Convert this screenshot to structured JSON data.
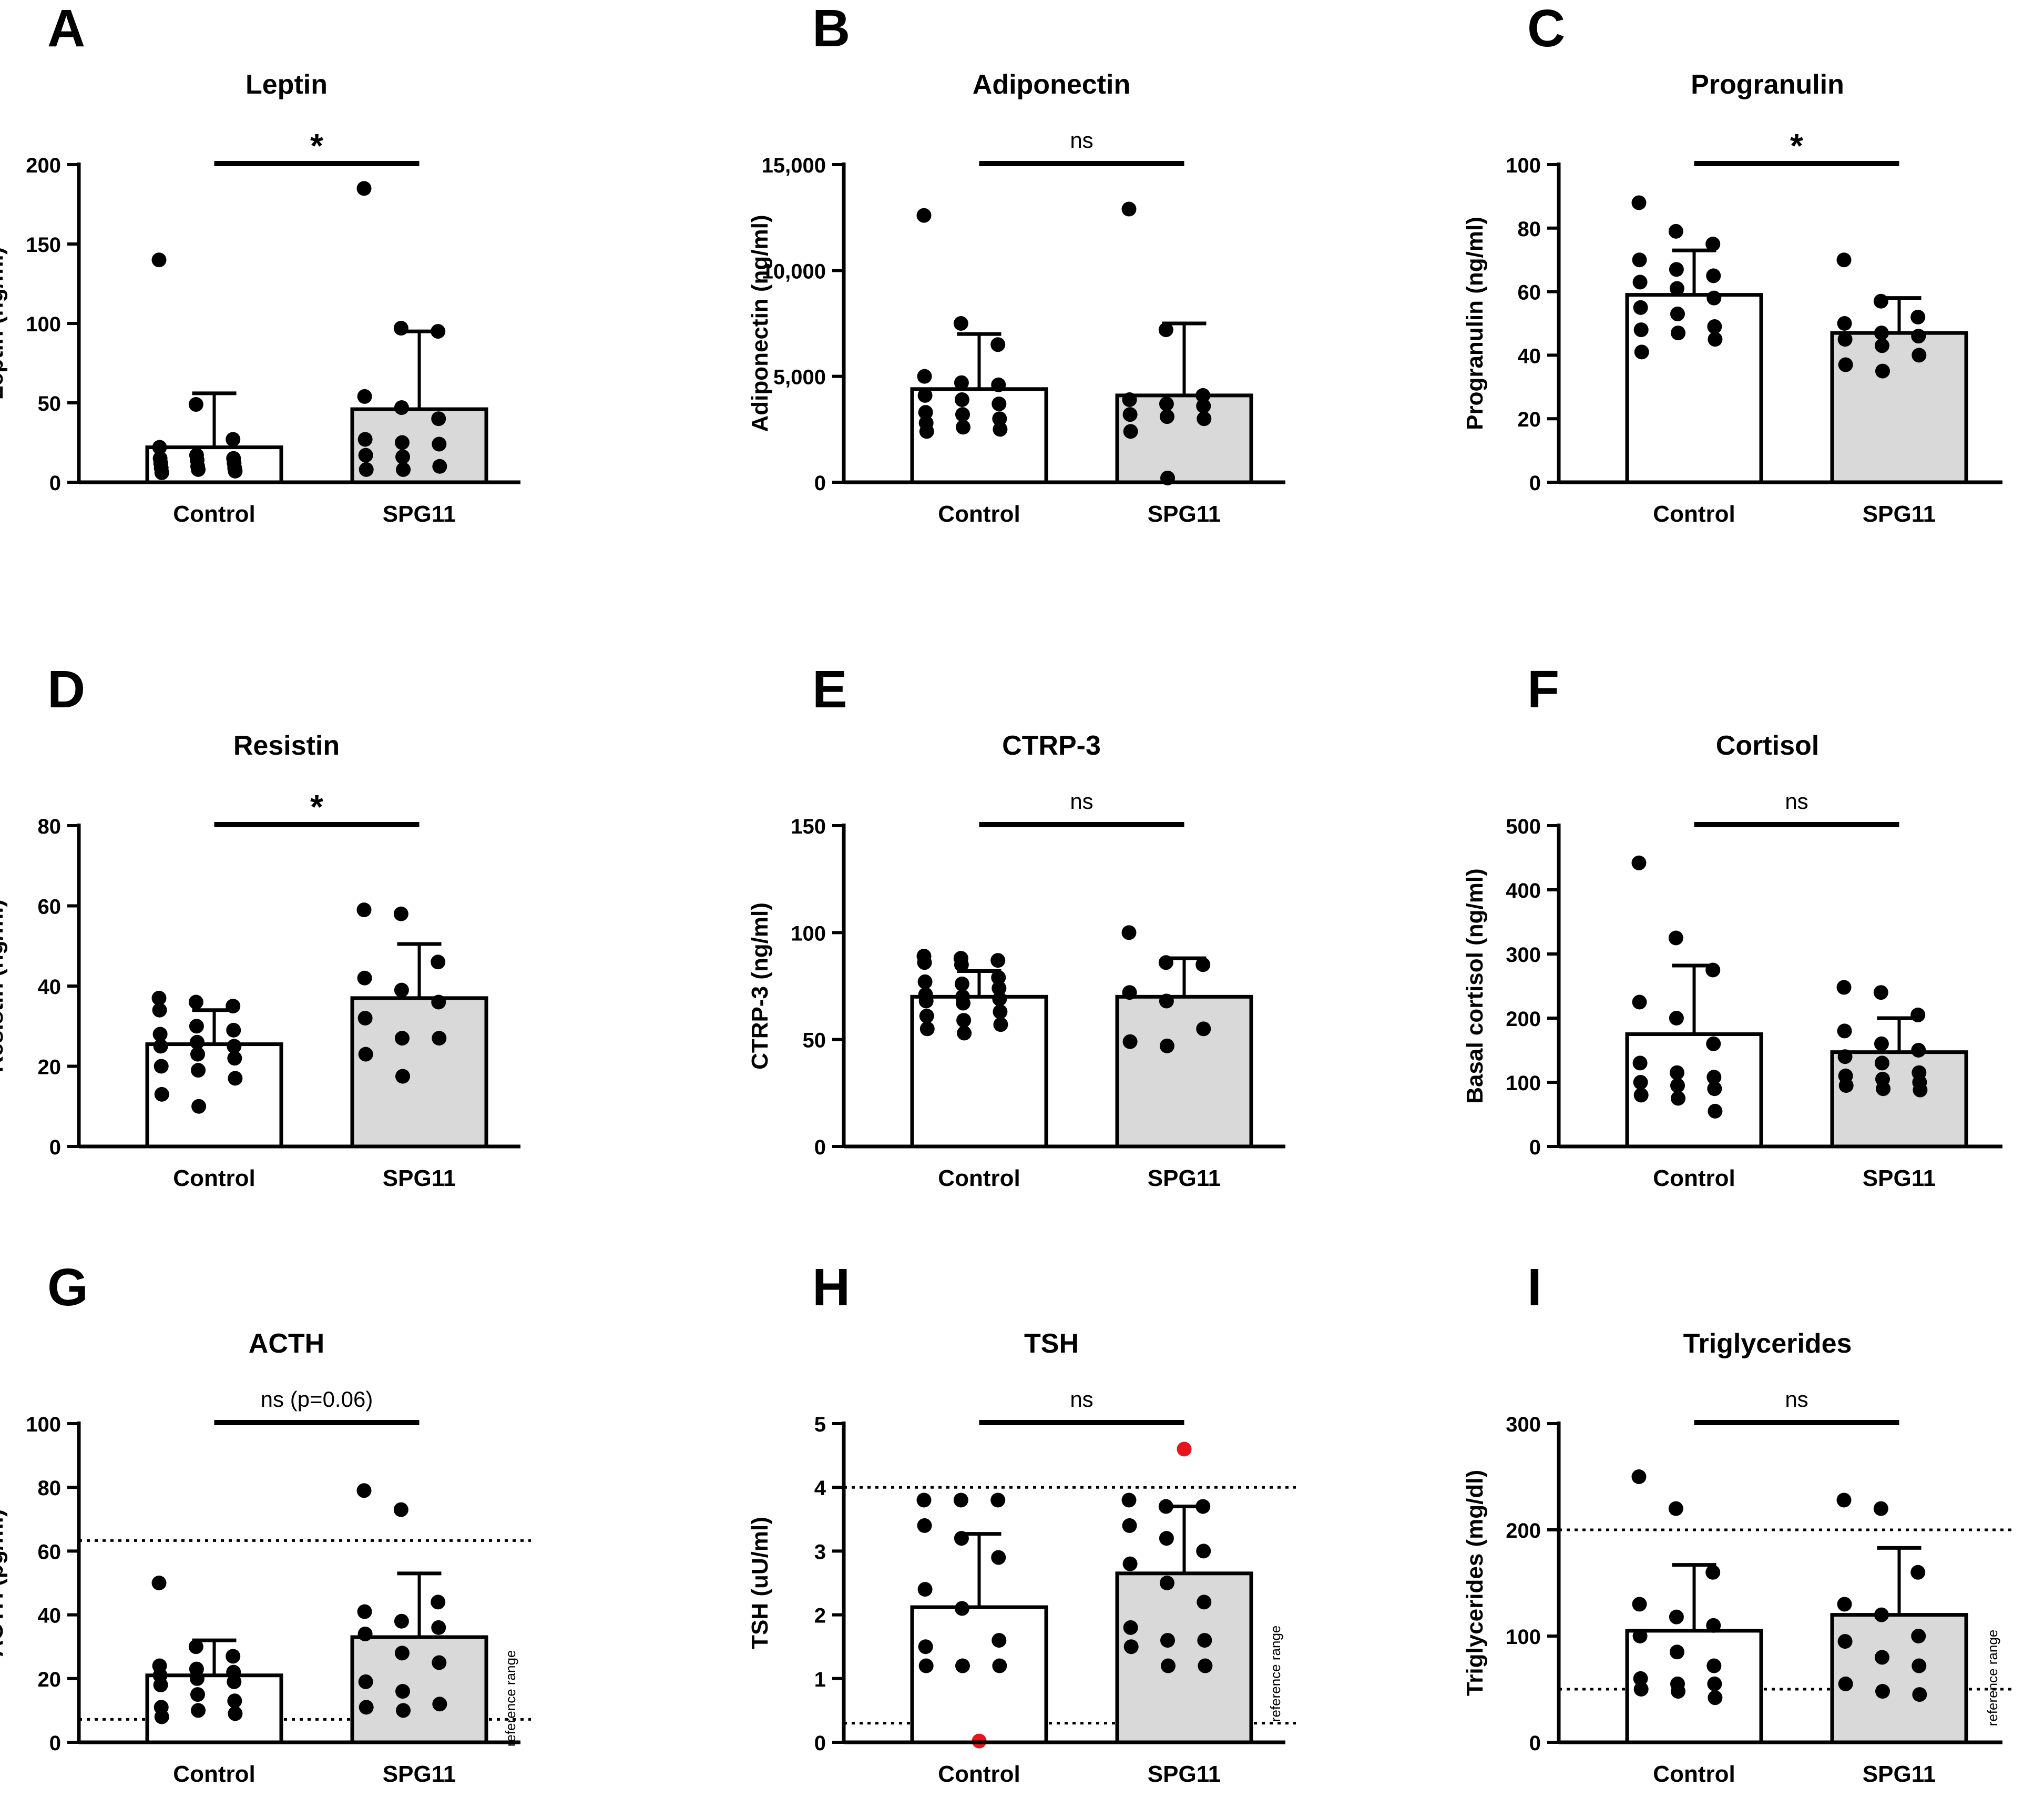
{
  "figure": {
    "reference_label": "reference range"
  },
  "chart_data": [
    {
      "panel": "A",
      "type": "bar",
      "title": "Leptin",
      "ylabel": "Leptin (ng/ml)",
      "categories": [
        "Control",
        "SPG11"
      ],
      "ylim": [
        0,
        200
      ],
      "yticks": [
        0,
        50,
        100,
        150,
        200
      ],
      "ytick_labels": [
        "0",
        "50",
        "100",
        "150",
        "200"
      ],
      "means": [
        22,
        46
      ],
      "error_upper": [
        56,
        95
      ],
      "bar_colors": [
        "#ffffff",
        "#d9d9d9"
      ],
      "points": [
        [
          140,
          49,
          27,
          22,
          17,
          15,
          15,
          14,
          12,
          12,
          10,
          9,
          9,
          8,
          7,
          6
        ],
        [
          185,
          97,
          95,
          54,
          47,
          40,
          27,
          25,
          24,
          17,
          16,
          10,
          8,
          8
        ]
      ],
      "significance": "*",
      "reference_range": null
    },
    {
      "panel": "B",
      "type": "bar",
      "title": "Adiponectin",
      "ylabel": "Adiponectin (ng/ml)",
      "categories": [
        "Control",
        "SPG11"
      ],
      "ylim": [
        0,
        15000
      ],
      "yticks": [
        0,
        5000,
        10000,
        15000
      ],
      "ytick_labels": [
        "0",
        "5,000",
        "10,000",
        "15,000"
      ],
      "means": [
        4400,
        4100
      ],
      "error_upper": [
        7000,
        7500
      ],
      "bar_colors": [
        "#ffffff",
        "#d9d9d9"
      ],
      "points": [
        [
          12600,
          7500,
          6500,
          5000,
          4700,
          4600,
          4100,
          3900,
          3700,
          3300,
          3200,
          3000,
          2800,
          2600,
          2500,
          2400
        ],
        [
          12900,
          7200,
          4100,
          3900,
          3700,
          3600,
          3200,
          3100,
          3000,
          2400,
          200
        ]
      ],
      "significance": "ns",
      "reference_range": null
    },
    {
      "panel": "C",
      "type": "bar",
      "title": "Progranulin",
      "ylabel": "Progranulin (ng/ml)",
      "categories": [
        "Control",
        "SPG11"
      ],
      "ylim": [
        0,
        100
      ],
      "yticks": [
        0,
        20,
        40,
        60,
        80,
        100
      ],
      "ytick_labels": [
        "0",
        "20",
        "40",
        "60",
        "80",
        "100"
      ],
      "means": [
        59,
        47
      ],
      "error_upper": [
        73,
        58
      ],
      "bar_colors": [
        "#ffffff",
        "#d9d9d9"
      ],
      "points": [
        [
          88,
          79,
          75,
          70,
          67,
          65,
          63,
          61,
          58,
          55,
          53,
          49,
          48,
          47,
          45,
          41
        ],
        [
          70,
          57,
          52,
          50,
          47,
          46,
          45,
          43,
          40,
          37,
          35
        ]
      ],
      "significance": "*",
      "reference_range": null
    },
    {
      "panel": "D",
      "type": "bar",
      "title": "Resistin",
      "ylabel": "Resistin (ng/ml)",
      "categories": [
        "Control",
        "SPG11"
      ],
      "ylim": [
        0,
        80
      ],
      "yticks": [
        0,
        20,
        40,
        60,
        80
      ],
      "ytick_labels": [
        "0",
        "20",
        "40",
        "60",
        "80"
      ],
      "means": [
        25.5,
        37
      ],
      "error_upper": [
        34,
        50.5
      ],
      "bar_colors": [
        "#ffffff",
        "#d9d9d9"
      ],
      "points": [
        [
          37,
          36,
          35,
          34,
          30,
          29,
          28,
          26,
          25,
          25,
          23,
          22,
          20,
          19,
          17,
          13,
          10
        ],
        [
          59,
          58,
          46,
          42,
          39,
          36,
          32,
          27,
          27,
          23,
          17.5
        ]
      ],
      "significance": "*",
      "reference_range": null
    },
    {
      "panel": "E",
      "type": "bar",
      "title": "CTRP-3",
      "ylabel": "CTRP-3 (ng/ml)",
      "categories": [
        "Control",
        "SPG11"
      ],
      "ylim": [
        0,
        150
      ],
      "yticks": [
        0,
        50,
        100,
        150
      ],
      "ytick_labels": [
        "0",
        "50",
        "100",
        "150"
      ],
      "means": [
        70,
        70
      ],
      "error_upper": [
        82,
        88
      ],
      "bar_colors": [
        "#ffffff",
        "#d9d9d9"
      ],
      "points": [
        [
          89,
          88,
          87,
          86,
          85,
          79,
          77,
          76,
          74,
          71,
          70,
          69,
          68,
          67,
          63,
          61,
          59,
          57,
          55,
          53
        ],
        [
          100,
          86,
          85,
          72,
          68,
          55,
          49,
          47
        ]
      ],
      "significance": "ns",
      "reference_range": null
    },
    {
      "panel": "F",
      "type": "bar",
      "title": "Cortisol",
      "ylabel": "Basal cortisol (ng/ml)",
      "categories": [
        "Control",
        "SPG11"
      ],
      "ylim": [
        0,
        500
      ],
      "yticks": [
        0,
        100,
        200,
        300,
        400,
        500
      ],
      "ytick_labels": [
        "0",
        "100",
        "200",
        "300",
        "400",
        "500"
      ],
      "means": [
        175,
        147
      ],
      "error_upper": [
        282,
        200
      ],
      "bar_colors": [
        "#ffffff",
        "#d9d9d9"
      ],
      "points": [
        [
          442,
          325,
          275,
          225,
          200,
          160,
          130,
          115,
          108,
          100,
          95,
          90,
          80,
          75,
          55
        ],
        [
          248,
          240,
          205,
          180,
          160,
          150,
          140,
          130,
          115,
          110,
          105,
          100,
          95,
          90,
          88
        ]
      ],
      "significance": "ns",
      "reference_range": null
    },
    {
      "panel": "G",
      "type": "bar",
      "title": "ACTH",
      "ylabel": "ACTH (pg/ml)",
      "categories": [
        "Control",
        "SPG11"
      ],
      "ylim": [
        0,
        100
      ],
      "yticks": [
        0,
        20,
        40,
        60,
        80,
        100
      ],
      "ytick_labels": [
        "0",
        "20",
        "40",
        "60",
        "80",
        "100"
      ],
      "means": [
        21,
        33
      ],
      "error_upper": [
        32,
        53
      ],
      "bar_colors": [
        "#ffffff",
        "#d9d9d9"
      ],
      "points": [
        [
          50,
          30,
          27,
          24,
          23,
          22,
          21,
          20,
          19,
          18,
          15,
          13,
          11,
          10,
          9,
          8
        ],
        [
          79,
          73,
          44,
          41,
          38,
          36,
          34,
          28,
          25,
          19,
          16,
          12,
          11,
          10
        ]
      ],
      "significance": "ns (p=0.06)",
      "reference_range": [
        7.2,
        63.3
      ]
    },
    {
      "panel": "H",
      "type": "bar",
      "title": "TSH",
      "ylabel": "TSH (uU/ml)",
      "categories": [
        "Control",
        "SPG11"
      ],
      "ylim": [
        0,
        5
      ],
      "yticks": [
        0,
        1,
        2,
        3,
        4,
        5
      ],
      "ytick_labels": [
        "0",
        "1",
        "2",
        "3",
        "4",
        "5"
      ],
      "means": [
        2.12,
        2.65
      ],
      "error_upper": [
        3.27,
        3.7
      ],
      "bar_colors": [
        "#ffffff",
        "#d9d9d9"
      ],
      "points": [
        [
          3.8,
          3.8,
          3.8,
          3.4,
          3.2,
          2.9,
          2.4,
          2.1,
          1.6,
          1.5,
          1.2,
          1.2,
          1.2
        ],
        [
          3.8,
          3.7,
          3.7,
          3.4,
          3.2,
          3.0,
          2.8,
          2.5,
          2.2,
          1.8,
          1.6,
          1.6,
          1.5,
          1.2,
          1.2
        ]
      ],
      "outliers": [
        [
          0.02
        ],
        [
          4.6
        ]
      ],
      "significance": "ns",
      "reference_range": [
        0.3,
        4.0
      ]
    },
    {
      "panel": "I",
      "type": "bar",
      "title": "Triglycerides",
      "ylabel": "Triglycerides (mg/dl)",
      "categories": [
        "Control",
        "SPG11"
      ],
      "ylim": [
        0,
        300
      ],
      "yticks": [
        0,
        100,
        200,
        300
      ],
      "ytick_labels": [
        "0",
        "100",
        "200",
        "300"
      ],
      "means": [
        105,
        120
      ],
      "error_upper": [
        167,
        183
      ],
      "bar_colors": [
        "#ffffff",
        "#d9d9d9"
      ],
      "points": [
        [
          250,
          220,
          160,
          130,
          118,
          110,
          100,
          85,
          72,
          60,
          55,
          55,
          50,
          48,
          42
        ],
        [
          228,
          220,
          160,
          130,
          120,
          100,
          95,
          80,
          72,
          55,
          48,
          45
        ]
      ],
      "significance": "ns",
      "reference_range": [
        50,
        200
      ]
    }
  ]
}
